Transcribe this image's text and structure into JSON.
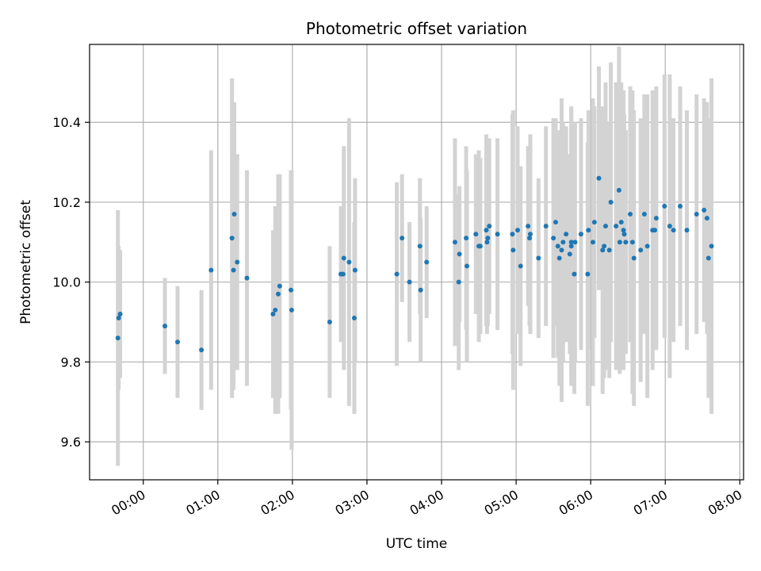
{
  "chart_data": {
    "type": "scatter",
    "title": "Photometric offset variation",
    "xlabel": "UTC time",
    "ylabel": "Photometric offset",
    "x_unit": "hours UTC",
    "xlim": [
      -0.72,
      8.05
    ],
    "ylim": [
      9.505,
      10.595
    ],
    "x_ticks": [
      0,
      1,
      2,
      3,
      4,
      5,
      6,
      7,
      8
    ],
    "x_tick_labels": [
      "00:00",
      "01:00",
      "02:00",
      "03:00",
      "04:00",
      "05:00",
      "06:00",
      "07:00",
      "08:00"
    ],
    "y_ticks": [
      9.6,
      9.8,
      10.0,
      10.2,
      10.4
    ],
    "y_tick_labels": [
      "9.6",
      "9.8",
      "10.0",
      "10.2",
      "10.4"
    ],
    "grid": true,
    "colors": {
      "points": "#1f77b4",
      "errorbars": "#d3d3d3",
      "grid": "#b0b0b0"
    },
    "series": [
      {
        "x": [
          -0.34,
          -0.33,
          -0.31,
          0.29,
          0.46,
          0.78,
          0.91,
          1.19,
          1.21,
          1.22,
          1.26,
          1.39,
          1.74,
          1.77,
          1.81,
          1.83,
          1.98,
          1.99,
          2.5,
          2.65,
          2.68,
          2.69,
          2.76,
          2.83,
          2.84,
          3.4,
          3.47,
          3.57,
          3.71,
          3.72,
          3.8,
          4.18,
          4.23,
          4.24,
          4.33,
          4.34,
          4.46,
          4.5,
          4.52,
          4.6,
          4.61,
          4.62,
          4.64,
          4.75,
          4.95,
          4.96,
          5.02,
          5.06,
          5.16,
          5.18,
          5.19,
          5.3,
          5.4,
          5.5,
          5.53,
          5.56,
          5.58,
          5.61,
          5.63,
          5.67,
          5.72,
          5.74,
          5.74,
          5.78,
          5.79,
          5.87,
          5.96,
          5.97,
          6.03,
          6.05,
          6.11,
          6.16,
          6.18,
          6.2,
          6.25,
          6.27,
          6.34,
          6.38,
          6.39,
          6.41,
          6.44,
          6.45,
          6.47,
          6.53,
          6.56,
          6.58,
          6.67,
          6.72,
          6.76,
          6.83,
          6.86,
          6.88,
          6.99,
          7.06,
          7.11,
          7.2,
          7.29,
          7.42,
          7.52,
          7.56,
          7.58,
          7.62
        ],
        "y": [
          9.86,
          9.91,
          9.92,
          9.89,
          9.85,
          9.83,
          10.03,
          10.11,
          10.03,
          10.17,
          10.05,
          10.01,
          9.92,
          9.93,
          9.97,
          9.99,
          9.98,
          9.93,
          9.9,
          10.02,
          10.02,
          10.06,
          10.05,
          9.91,
          10.03,
          10.02,
          10.11,
          10.0,
          10.09,
          9.98,
          10.05,
          10.1,
          10.0,
          10.07,
          10.11,
          10.04,
          10.12,
          10.09,
          10.09,
          10.13,
          10.1,
          10.11,
          10.14,
          10.12,
          10.12,
          10.08,
          10.13,
          10.04,
          10.14,
          10.11,
          10.12,
          10.06,
          10.14,
          10.11,
          10.15,
          10.09,
          10.06,
          10.08,
          10.1,
          10.12,
          10.07,
          10.1,
          10.09,
          10.02,
          10.1,
          10.12,
          10.02,
          10.13,
          10.1,
          10.15,
          10.26,
          10.08,
          10.09,
          10.14,
          10.08,
          10.2,
          10.14,
          10.23,
          10.1,
          10.15,
          10.13,
          10.12,
          10.1,
          10.17,
          10.1,
          10.06,
          10.08,
          10.17,
          10.09,
          10.13,
          10.13,
          10.16,
          10.19,
          10.14,
          10.13,
          10.19,
          10.13,
          10.17,
          10.18,
          10.16,
          10.06,
          10.09
        ],
        "err": [
          0.32,
          0.18,
          0.16,
          0.12,
          0.14,
          0.15,
          0.3,
          0.4,
          0.3,
          0.28,
          0.27,
          0.27,
          0.21,
          0.26,
          0.3,
          0.28,
          0.3,
          0.35,
          0.19,
          0.17,
          0.17,
          0.28,
          0.36,
          0.24,
          0.23,
          0.23,
          0.16,
          0.15,
          0.17,
          0.18,
          0.14,
          0.26,
          0.22,
          0.17,
          0.23,
          0.24,
          0.2,
          0.24,
          0.22,
          0.24,
          0.23,
          0.22,
          0.22,
          0.24,
          0.3,
          0.35,
          0.26,
          0.25,
          0.2,
          0.22,
          0.25,
          0.2,
          0.25,
          0.3,
          0.26,
          0.28,
          0.32,
          0.38,
          0.3,
          0.27,
          0.25,
          0.33,
          0.35,
          0.3,
          0.3,
          0.29,
          0.33,
          0.3,
          0.36,
          0.29,
          0.28,
          0.36,
          0.33,
          0.36,
          0.32,
          0.35,
          0.36,
          0.36,
          0.33,
          0.35,
          0.35,
          0.3,
          0.28,
          0.32,
          0.38,
          0.37,
          0.33,
          0.3,
          0.38,
          0.35,
          0.3,
          0.33,
          0.33,
          0.38,
          0.28,
          0.3,
          0.3,
          0.3,
          0.28,
          0.29,
          0.35,
          0.42
        ]
      }
    ]
  }
}
